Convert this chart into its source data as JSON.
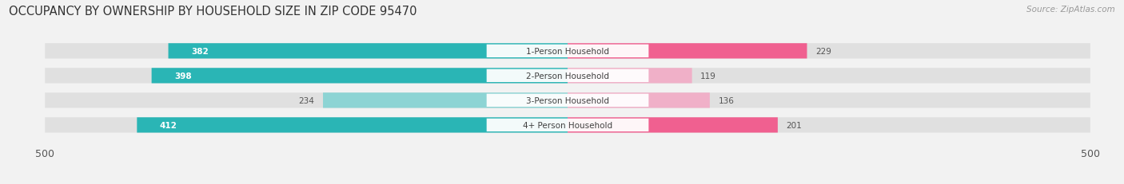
{
  "title": "OCCUPANCY BY OWNERSHIP BY HOUSEHOLD SIZE IN ZIP CODE 95470",
  "source": "Source: ZipAtlas.com",
  "categories": [
    "1-Person Household",
    "2-Person Household",
    "3-Person Household",
    "4+ Person Household"
  ],
  "owner_values": [
    382,
    398,
    234,
    412
  ],
  "renter_values": [
    229,
    119,
    136,
    201
  ],
  "owner_colors": [
    "#2ab5b5",
    "#2ab5b5",
    "#8dd4d4",
    "#2ab5b5"
  ],
  "renter_colors": [
    "#f06090",
    "#f0b0c8",
    "#f0b0c8",
    "#f06090"
  ],
  "axis_max": 500,
  "bg_color": "#f2f2f2",
  "bar_bg_color": "#e0e0e0",
  "title_fontsize": 10.5,
  "source_fontsize": 7.5,
  "tick_fontsize": 9,
  "legend_fontsize": 9,
  "bar_height": 0.62,
  "bar_spacing": 1.0
}
